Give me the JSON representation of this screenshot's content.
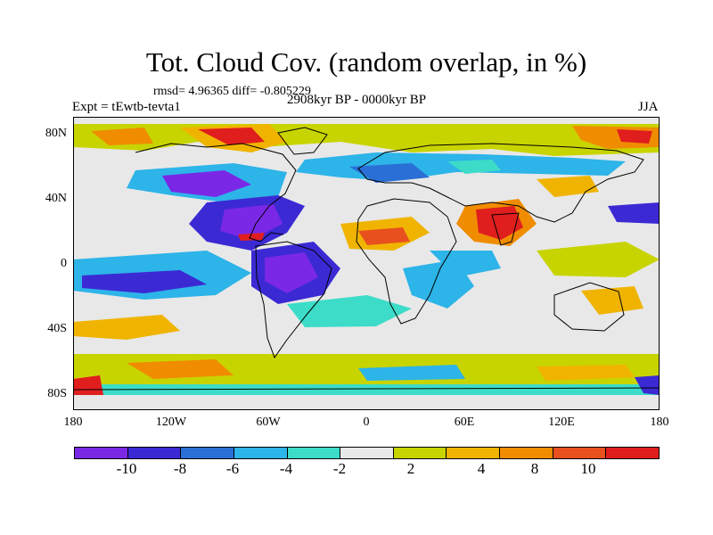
{
  "header": {
    "title": "Tot. Cloud Cov. (random overlap, in %)",
    "stats": "rmsd= 4.96365 diff= -0.805229",
    "period": "2908kyr BP - 0000kyr BP",
    "experiment": "Expt = tEwtb-tevta1",
    "season": "JJA"
  },
  "map": {
    "projection": "cylindrical equidistant",
    "lon_range": [
      -180,
      180
    ],
    "lat_range": [
      -90,
      90
    ],
    "lat_labels": [
      "80N",
      "40N",
      "0",
      "40S",
      "80S"
    ],
    "lon_labels": [
      "180",
      "120W",
      "60W",
      "0",
      "60E",
      "120E",
      "180"
    ]
  },
  "colorbar": {
    "colors": [
      "#7a28e6",
      "#3b2ad4",
      "#2a6fd6",
      "#2db4e8",
      "#3cdcc8",
      "#e8e8e8",
      "#c8d400",
      "#f0b400",
      "#f08c00",
      "#e8501e",
      "#e01e1e"
    ],
    "labels": [
      "-10",
      "-8",
      "-6",
      "-4",
      "-2",
      "2",
      "4",
      "8",
      "10"
    ]
  }
}
